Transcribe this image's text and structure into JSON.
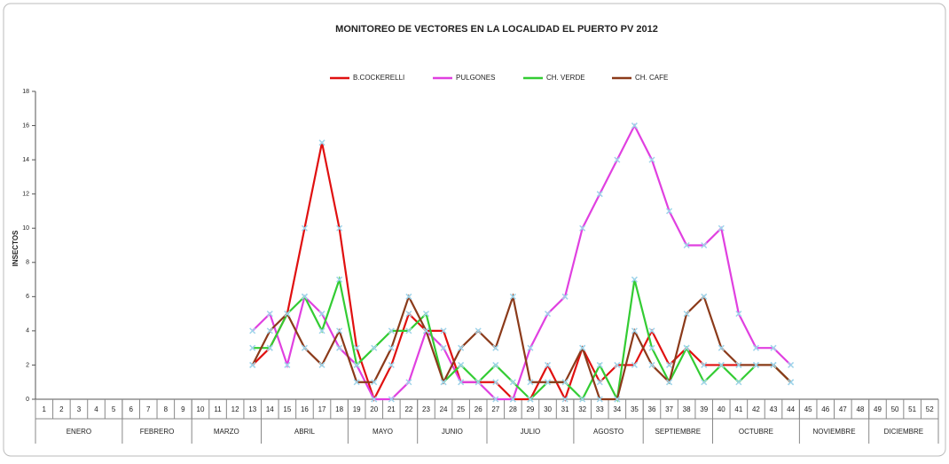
{
  "chart_data": {
    "type": "line",
    "title": "MONITOREO DE VECTORES EN LA LOCALIDAD EL  PUERTO PV 2012",
    "y_label": "INSECTOS",
    "categories": [
      "1",
      "2",
      "3",
      "4",
      "5",
      "6",
      "7",
      "8",
      "9",
      "10",
      "11",
      "12",
      "13",
      "14",
      "15",
      "16",
      "17",
      "18",
      "19",
      "20",
      "21",
      "22",
      "23",
      "24",
      "25",
      "26",
      "27",
      "28",
      "29",
      "30",
      "31",
      "32",
      "33",
      "34",
      "35",
      "36",
      "37",
      "38",
      "39",
      "40",
      "41",
      "42",
      "43",
      "44",
      "45",
      "46",
      "47",
      "48",
      "49",
      "50",
      "51",
      "52"
    ],
    "x_groups": [
      {
        "label": "ENERO",
        "span": 5
      },
      {
        "label": "FEBRERO",
        "span": 4
      },
      {
        "label": "MARZO",
        "span": 4
      },
      {
        "label": "ABRIL",
        "span": 5
      },
      {
        "label": "MAYO",
        "span": 4
      },
      {
        "label": "JUNIO",
        "span": 4
      },
      {
        "label": "JULIO",
        "span": 5
      },
      {
        "label": "AGOSTO",
        "span": 4
      },
      {
        "label": "SEPTIEMBRE",
        "span": 4
      },
      {
        "label": "OCTUBRE",
        "span": 5
      },
      {
        "label": "NOVIEMBRE",
        "span": 4
      },
      {
        "label": "DICIEMBRE",
        "span": 4
      }
    ],
    "series": [
      {
        "name": "B.COCKERELLI",
        "color": "#e01010",
        "values": [
          null,
          null,
          null,
          null,
          null,
          null,
          null,
          null,
          null,
          null,
          null,
          null,
          2,
          3,
          5,
          10,
          15,
          10,
          3,
          0,
          2,
          5,
          4,
          4,
          1,
          1,
          1,
          0,
          0,
          2,
          0,
          3,
          1,
          2,
          2,
          4,
          2,
          3,
          2,
          2,
          2,
          2,
          2,
          1,
          null,
          null,
          null,
          null,
          null,
          null,
          null,
          null
        ]
      },
      {
        "name": "PULGONES",
        "color": "#e040e0",
        "values": [
          null,
          null,
          null,
          null,
          null,
          null,
          null,
          null,
          null,
          null,
          null,
          null,
          4,
          5,
          2,
          6,
          5,
          3,
          2,
          0,
          0,
          1,
          4,
          3,
          1,
          1,
          0,
          0,
          3,
          5,
          6,
          10,
          12,
          14,
          16,
          14,
          11,
          9,
          9,
          10,
          5,
          3,
          3,
          2,
          null,
          null,
          null,
          null,
          null,
          null,
          null,
          null
        ]
      },
      {
        "name": "CH. VERDE",
        "color": "#33cc33",
        "values": [
          null,
          null,
          null,
          null,
          null,
          null,
          null,
          null,
          null,
          null,
          null,
          null,
          3,
          3,
          5,
          6,
          4,
          7,
          2,
          3,
          4,
          4,
          5,
          1,
          2,
          1,
          2,
          1,
          0,
          1,
          1,
          0,
          2,
          0,
          7,
          3,
          1,
          3,
          1,
          2,
          1,
          2,
          2,
          1,
          null,
          null,
          null,
          null,
          null,
          null,
          null,
          null
        ]
      },
      {
        "name": "CH. CAFE",
        "color": "#8b3a1a",
        "values": [
          null,
          null,
          null,
          null,
          null,
          null,
          null,
          null,
          null,
          null,
          null,
          null,
          2,
          4,
          5,
          3,
          2,
          4,
          1,
          1,
          3,
          6,
          4,
          1,
          3,
          4,
          3,
          6,
          1,
          1,
          1,
          3,
          0,
          0,
          4,
          2,
          1,
          5,
          6,
          3,
          2,
          2,
          2,
          1,
          null,
          null,
          null,
          null,
          null,
          null,
          null,
          null
        ]
      }
    ],
    "ylim": [
      0,
      18
    ],
    "yticks": [
      0,
      2,
      4,
      6,
      8,
      10,
      12,
      14,
      16,
      18
    ],
    "marker_color": "#9fd4ea"
  }
}
